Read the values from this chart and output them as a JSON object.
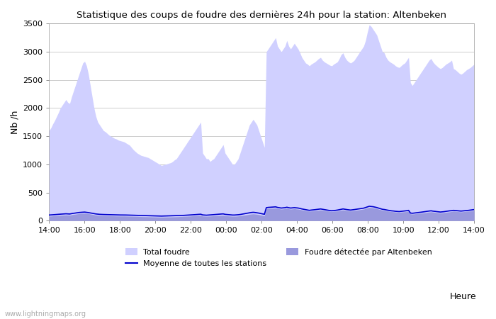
{
  "title": "Statistique des coups de foudre des dernières 24h pour la station: Altenbeken",
  "ylabel": "Nb /h",
  "watermark": "www.lightningmaps.org",
  "xlim_labels": [
    "14:00",
    "16:00",
    "18:00",
    "20:00",
    "22:00",
    "00:00",
    "02:00",
    "04:00",
    "06:00",
    "08:00",
    "10:00",
    "12:00",
    "14:00"
  ],
  "ylim": [
    0,
    3500
  ],
  "yticks": [
    0,
    500,
    1000,
    1500,
    2000,
    2500,
    3000,
    3500
  ],
  "color_total": "#d0d0ff",
  "color_detected": "#9999dd",
  "color_moyenne": "#0000cc",
  "background_color": "#ffffff",
  "grid_color": "#cccccc",
  "total_foudre": [
    1600,
    1650,
    1720,
    1780,
    1850,
    1920,
    2000,
    2050,
    2100,
    2150,
    2100,
    2080,
    2200,
    2300,
    2400,
    2500,
    2600,
    2700,
    2800,
    2830,
    2750,
    2600,
    2400,
    2200,
    2000,
    1850,
    1750,
    1700,
    1650,
    1600,
    1580,
    1550,
    1520,
    1500,
    1480,
    1460,
    1450,
    1430,
    1420,
    1410,
    1400,
    1380,
    1360,
    1340,
    1300,
    1260,
    1230,
    1200,
    1180,
    1160,
    1150,
    1140,
    1130,
    1120,
    1100,
    1080,
    1060,
    1040,
    1020,
    1000,
    980,
    990,
    1000,
    1010,
    1020,
    1030,
    1050,
    1080,
    1100,
    1150,
    1200,
    1250,
    1300,
    1350,
    1400,
    1450,
    1500,
    1550,
    1600,
    1650,
    1700,
    1750,
    1200,
    1150,
    1100,
    1100,
    1050,
    1080,
    1100,
    1150,
    1200,
    1250,
    1300,
    1350,
    1200,
    1150,
    1100,
    1050,
    1000,
    1000,
    1050,
    1100,
    1200,
    1300,
    1400,
    1500,
    1600,
    1700,
    1750,
    1800,
    1750,
    1700,
    1600,
    1500,
    1400,
    1300,
    3000,
    3050,
    3100,
    3150,
    3200,
    3250,
    3100,
    3050,
    3000,
    3050,
    3100,
    3200,
    3100,
    3050,
    3100,
    3150,
    3100,
    3050,
    2980,
    2900,
    2850,
    2800,
    2780,
    2750,
    2780,
    2800,
    2820,
    2850,
    2880,
    2900,
    2850,
    2820,
    2800,
    2780,
    2760,
    2750,
    2780,
    2800,
    2820,
    2880,
    2950,
    2980,
    2900,
    2850,
    2820,
    2800,
    2820,
    2850,
    2900,
    2950,
    3000,
    3050,
    3100,
    3200,
    3350,
    3480,
    3450,
    3400,
    3350,
    3300,
    3200,
    3100,
    3000,
    2980,
    2900,
    2850,
    2820,
    2800,
    2780,
    2750,
    2730,
    2720,
    2750,
    2780,
    2800,
    2850,
    2900,
    2450,
    2400,
    2450,
    2500,
    2550,
    2600,
    2650,
    2700,
    2750,
    2800,
    2850,
    2880,
    2820,
    2780,
    2750,
    2720,
    2700,
    2720,
    2750,
    2780,
    2800,
    2820,
    2850,
    2700,
    2680,
    2650,
    2620,
    2600,
    2620,
    2650,
    2680,
    2700,
    2720,
    2750,
    2780
  ],
  "foudre_detected": [
    80,
    82,
    85,
    88,
    90,
    92,
    95,
    98,
    100,
    102,
    100,
    98,
    105,
    110,
    115,
    120,
    125,
    128,
    130,
    132,
    128,
    124,
    118,
    112,
    105,
    100,
    96,
    93,
    91,
    90,
    89,
    88,
    87,
    86,
    85,
    84,
    83,
    83,
    82,
    82,
    82,
    81,
    80,
    79,
    78,
    77,
    76,
    75,
    73,
    72,
    71,
    70,
    70,
    69,
    68,
    67,
    66,
    65,
    64,
    63,
    62,
    63,
    64,
    65,
    65,
    66,
    67,
    68,
    69,
    70,
    72,
    73,
    75,
    77,
    79,
    81,
    84,
    86,
    88,
    90,
    92,
    94,
    82,
    80,
    78,
    80,
    82,
    84,
    86,
    88,
    90,
    92,
    94,
    96,
    88,
    86,
    83,
    81,
    78,
    78,
    80,
    83,
    87,
    92,
    97,
    102,
    107,
    113,
    117,
    120,
    117,
    113,
    107,
    100,
    93,
    87,
    210,
    215,
    218,
    220,
    222,
    225,
    215,
    210,
    205,
    208,
    212,
    218,
    210,
    205,
    208,
    212,
    208,
    205,
    198,
    190,
    185,
    178,
    173,
    168,
    172,
    175,
    178,
    182,
    186,
    190,
    185,
    180,
    175,
    170,
    165,
    162,
    165,
    168,
    172,
    178,
    185,
    190,
    185,
    180,
    176,
    172,
    176,
    180,
    185,
    190,
    195,
    200,
    205,
    215,
    225,
    235,
    232,
    228,
    222,
    215,
    205,
    195,
    185,
    182,
    175,
    170,
    165,
    160,
    157,
    153,
    150,
    148,
    152,
    155,
    158,
    162,
    168,
    120,
    117,
    120,
    124,
    127,
    131,
    135,
    139,
    143,
    148,
    153,
    157,
    152,
    148,
    144,
    140,
    137,
    140,
    144,
    148,
    152,
    157,
    162,
    168,
    165,
    162,
    158,
    155,
    158,
    162,
    165,
    168,
    172,
    176,
    180
  ],
  "moyenne": [
    100,
    102,
    105,
    107,
    110,
    112,
    115,
    117,
    120,
    122,
    120,
    118,
    125,
    130,
    135,
    140,
    145,
    148,
    150,
    152,
    148,
    143,
    137,
    131,
    124,
    119,
    115,
    112,
    110,
    109,
    108,
    107,
    106,
    105,
    104,
    103,
    102,
    102,
    101,
    101,
    101,
    100,
    99,
    98,
    97,
    96,
    95,
    94,
    92,
    91,
    90,
    89,
    89,
    88,
    87,
    86,
    85,
    84,
    83,
    82,
    81,
    82,
    83,
    84,
    84,
    85,
    86,
    87,
    88,
    89,
    91,
    92,
    94,
    96,
    98,
    100,
    103,
    105,
    107,
    110,
    112,
    114,
    102,
    99,
    97,
    100,
    102,
    104,
    107,
    110,
    113,
    116,
    118,
    120,
    112,
    109,
    105,
    103,
    100,
    100,
    102,
    105,
    109,
    115,
    121,
    128,
    134,
    140,
    145,
    148,
    145,
    140,
    134,
    127,
    120,
    113,
    230,
    235,
    238,
    240,
    242,
    245,
    235,
    230,
    224,
    227,
    231,
    238,
    230,
    224,
    227,
    231,
    227,
    224,
    217,
    208,
    202,
    195,
    189,
    183,
    188,
    191,
    195,
    199,
    203,
    208,
    202,
    197,
    191,
    185,
    179,
    176,
    179,
    183,
    188,
    195,
    202,
    208,
    202,
    197,
    192,
    188,
    192,
    197,
    202,
    208,
    213,
    218,
    222,
    233,
    244,
    255,
    252,
    248,
    241,
    233,
    222,
    212,
    202,
    198,
    191,
    185,
    179,
    174,
    171,
    166,
    163,
    161,
    165,
    169,
    173,
    177,
    183,
    135,
    131,
    135,
    139,
    143,
    148,
    152,
    157,
    161,
    166,
    171,
    175,
    169,
    165,
    160,
    156,
    153,
    156,
    160,
    165,
    169,
    175,
    177,
    183,
    180,
    177,
    173,
    170,
    173,
    177,
    180,
    183,
    188,
    192,
    197
  ],
  "n_points": 228
}
